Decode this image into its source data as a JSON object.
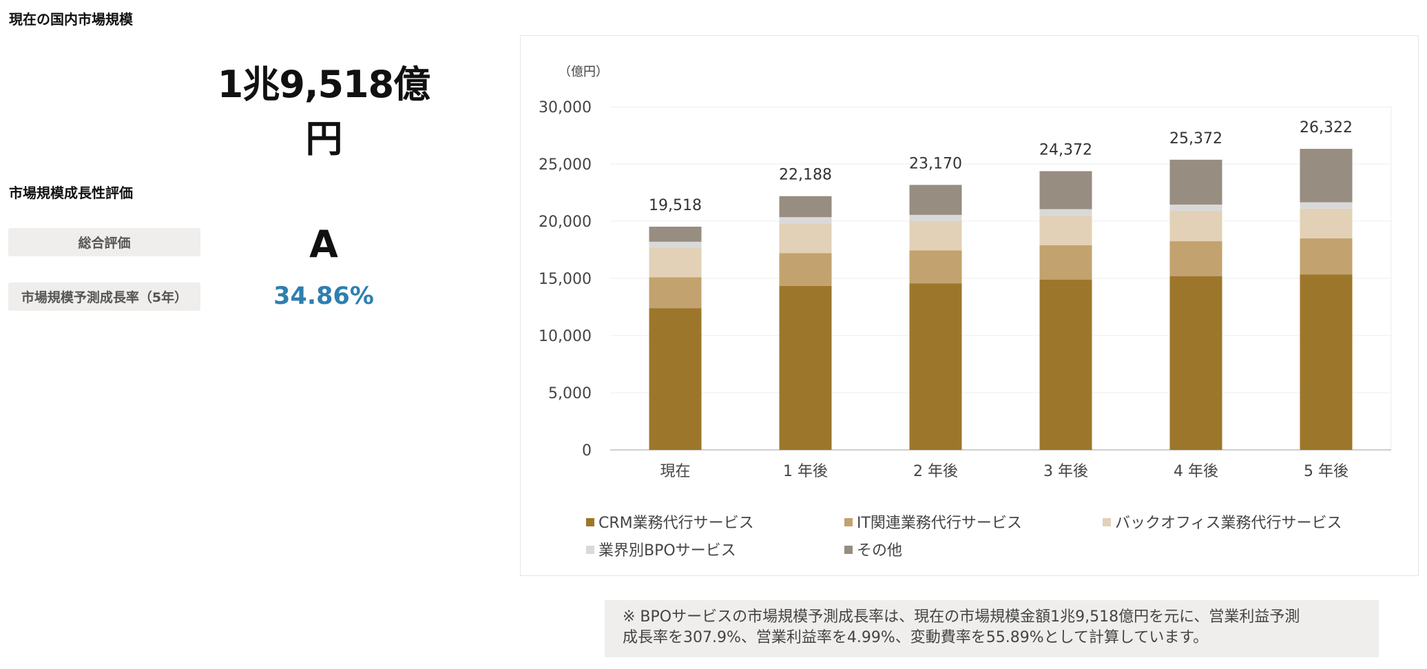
{
  "market_size": {
    "heading": "現在の国内市場規模",
    "value": "1兆9,518億円"
  },
  "growth": {
    "heading": "市場規模成長性評価",
    "overall_label": "総合評価",
    "overall_grade": "A",
    "rate_label": "市場規模予測成長率（5年）",
    "rate_value": "34.86%"
  },
  "colors": {
    "crm": "#9c772b",
    "it": "#c2a26e",
    "backoffice": "#e2d1b6",
    "industry": "#d9d9d9",
    "other": "#978d80",
    "rate_text": "#2e7fb0"
  },
  "chart_data": {
    "type": "bar",
    "stacked": true,
    "unit_label": "（億円）",
    "categories": [
      "現在",
      "1 年後",
      "2 年後",
      "3 年後",
      "4 年後",
      "5 年後"
    ],
    "ylim": [
      0,
      30000
    ],
    "yticks": [
      0,
      5000,
      10000,
      15000,
      20000,
      25000,
      30000
    ],
    "ytick_labels": [
      "0",
      "5,000",
      "10,000",
      "15,000",
      "20,000",
      "25,000",
      "30,000"
    ],
    "grid": true,
    "legend_position": "bottom",
    "series": [
      {
        "name": "CRM業務代行サービス",
        "color": "#9c772b",
        "values": [
          12400,
          14350,
          14550,
          14900,
          15200,
          15350
        ]
      },
      {
        "name": "IT関連業務代行サービス",
        "color": "#c2a26e",
        "values": [
          2700,
          2850,
          2900,
          3000,
          3050,
          3150
        ]
      },
      {
        "name": "バックオフィス業務代行サービス",
        "color": "#e2d1b6",
        "values": [
          2600,
          2600,
          2550,
          2600,
          2650,
          2600
        ]
      },
      {
        "name": "業界別BPOサービス",
        "color": "#d9d9d9",
        "values": [
          500,
          550,
          550,
          550,
          550,
          550
        ]
      },
      {
        "name": "その他",
        "color": "#978d80",
        "values": [
          1318,
          1838,
          2620,
          3322,
          3922,
          4672
        ]
      }
    ],
    "totals": [
      19518,
      22188,
      23170,
      24372,
      25372,
      26322
    ],
    "total_labels": [
      "19,518",
      "22,188",
      "23,170",
      "24,372",
      "25,372",
      "26,322"
    ]
  },
  "note": {
    "line1": "※ BPOサービスの市場規模予測成長率は、現在の市場規模金額1兆9,518億円を元に、営業利益予測",
    "line2": "成長率を307.9%、営業利益率を4.99%、変動費率を55.89%として計算しています。"
  }
}
